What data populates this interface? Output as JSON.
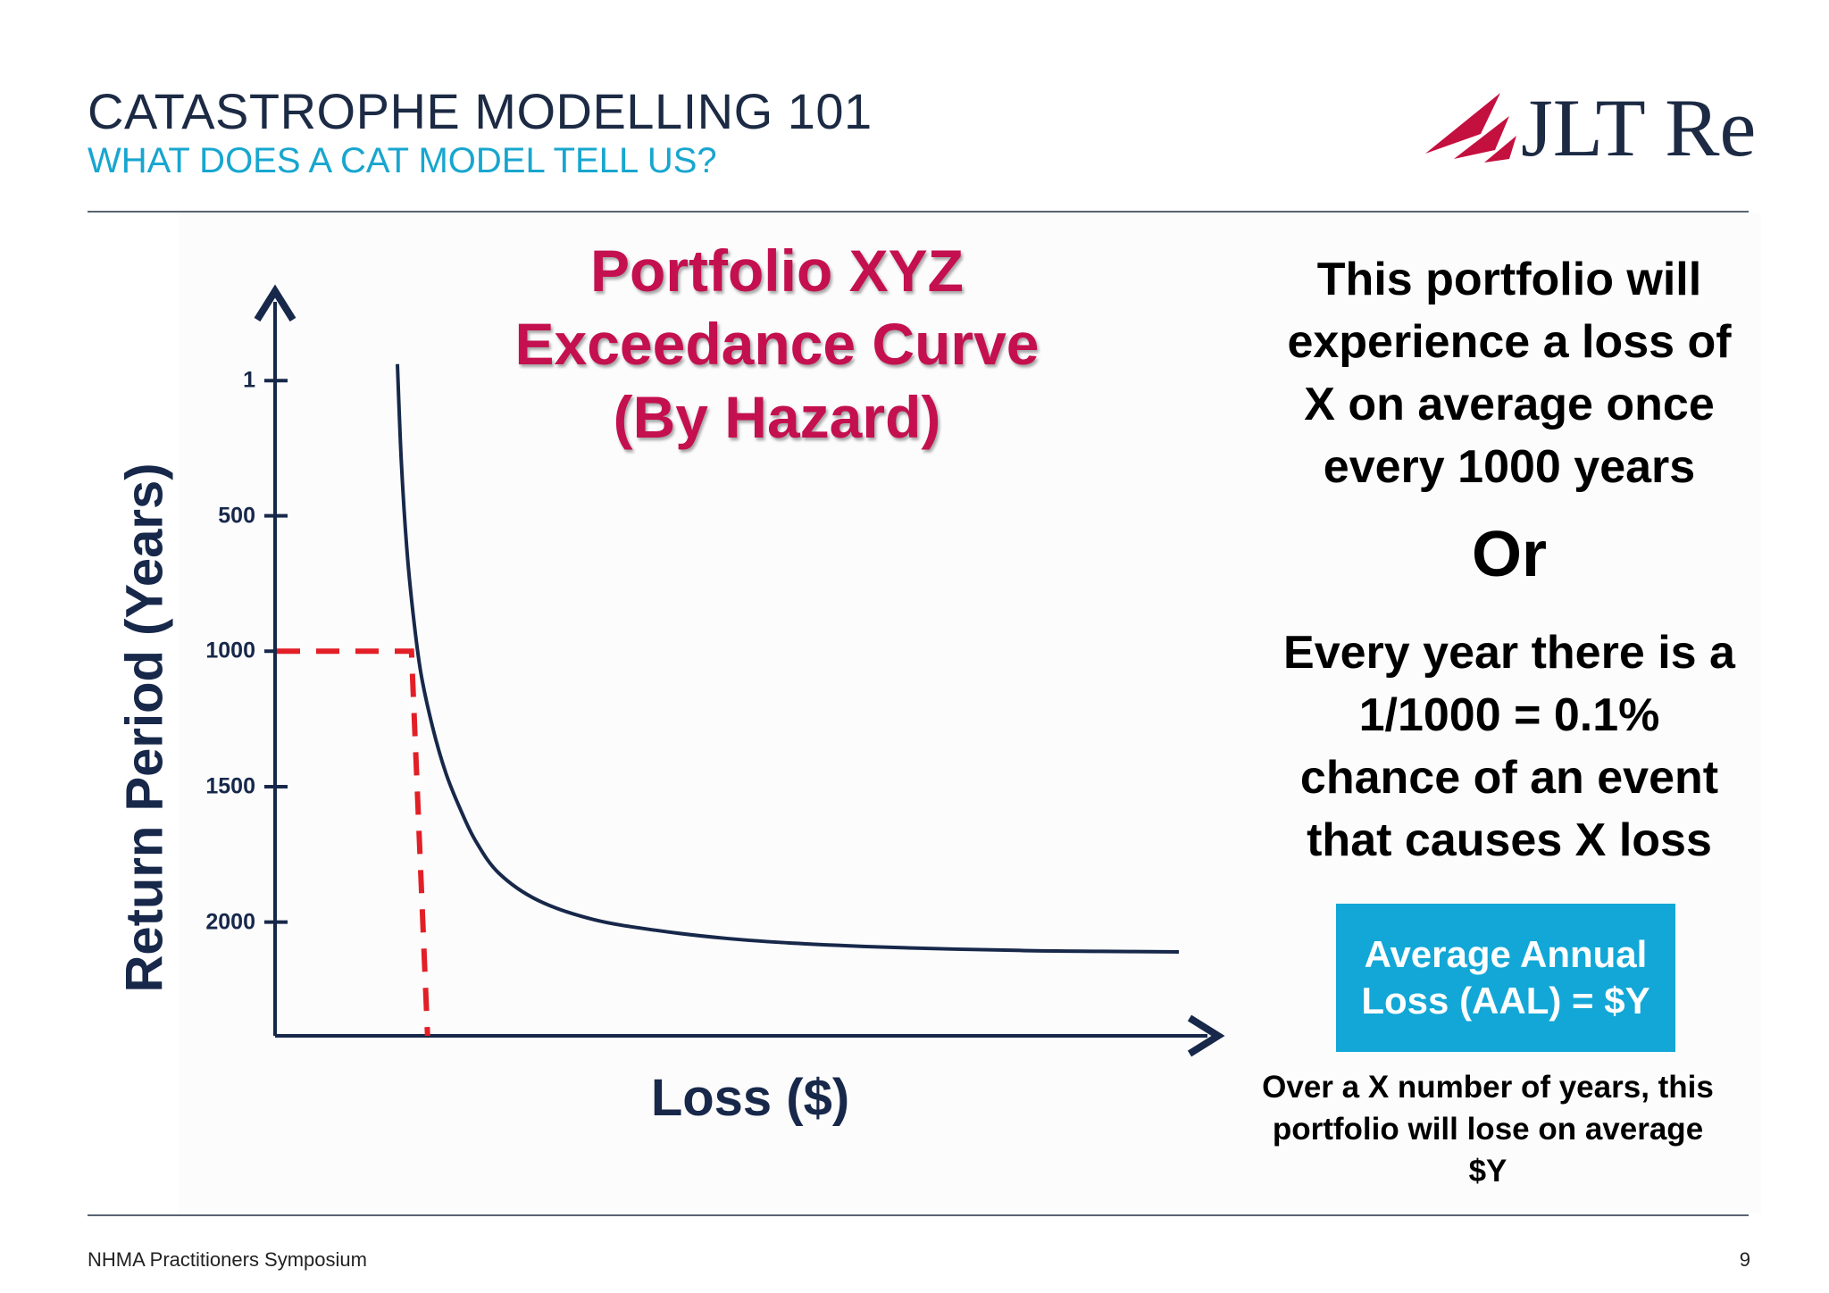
{
  "header": {
    "title": "CATASTROPHE MODELLING 101",
    "subtitle": "WHAT DOES A CAT MODEL TELL US?"
  },
  "logo": {
    "text": "JLT Re",
    "brand_colors": {
      "mark": "#c4103f",
      "text": "#1c2a44"
    }
  },
  "chart_data": {
    "type": "line",
    "title_lines": [
      "Portfolio XYZ",
      "Exceedance Curve",
      "(By Hazard)"
    ],
    "xlabel": "Loss ($)",
    "ylabel": "Return Period (Years)",
    "yticks": [
      "1",
      "500",
      "1000",
      "1500",
      "2000"
    ],
    "y_axis_inverted": true,
    "ylim": [
      -290,
      2420
    ],
    "grid": false,
    "series": [
      {
        "color": "#17284a",
        "x_relative": [
          0.0,
          0.005,
          0.012,
          0.02,
          0.03,
          0.045,
          0.062,
          0.08,
          0.1,
          0.13,
          0.18,
          0.25,
          0.33,
          0.42,
          0.52,
          0.65,
          0.8,
          0.9,
          1.0
        ],
        "y": [
          -60,
          300,
          620,
          860,
          1080,
          1280,
          1450,
          1580,
          1700,
          1820,
          1920,
          1990,
          2030,
          2060,
          2080,
          2095,
          2105,
          2108,
          2110
        ]
      }
    ],
    "annotation": {
      "type": "dashed-reference",
      "color": "#e21f26",
      "y": 1000,
      "x_relative": 0.018
    }
  },
  "statement": {
    "lines": [
      "This portfolio will",
      "experience a loss of",
      "X on average once",
      "every 1000 years"
    ],
    "or": "Or",
    "chance_lines": [
      "Every year there is a",
      "1/1000 = 0.1%",
      "chance of an event",
      "that causes X loss"
    ]
  },
  "aal_box": {
    "line1": "Average Annual",
    "line2": "Loss (AAL) = $Y",
    "color": "#12a7d6"
  },
  "note": {
    "line1": "Over a X number of years, this",
    "line2": "portfolio will lose on average",
    "line3": "$Y"
  },
  "footer": {
    "left": "NHMA Practitioners Symposium",
    "page": "9"
  }
}
